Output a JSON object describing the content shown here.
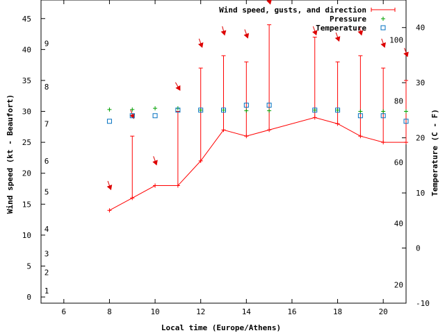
{
  "chart_data": {
    "type": "line",
    "xlabel": "Local time (Europe/Athens)",
    "ylabel_left": "Wind speed (kt - Beaufort)",
    "ylabel_right": "Temperature (C - F)",
    "xlim": [
      5,
      21
    ],
    "ylim_left": [
      -1,
      48
    ],
    "ylim_right": [
      -10,
      45
    ],
    "x_ticks": [
      6,
      8,
      10,
      12,
      14,
      16,
      18,
      20
    ],
    "y_left_ticks": [
      0,
      5,
      10,
      15,
      20,
      25,
      30,
      35,
      40,
      45
    ],
    "beaufort_labels": [
      {
        "label": "1",
        "kt": 1
      },
      {
        "label": "2",
        "kt": 4
      },
      {
        "label": "3",
        "kt": 7
      },
      {
        "label": "4",
        "kt": 11
      },
      {
        "label": "5",
        "kt": 17
      },
      {
        "label": "6",
        "kt": 22
      },
      {
        "label": "7",
        "kt": 28
      },
      {
        "label": "8",
        "kt": 34
      },
      {
        "label": "9",
        "kt": 41
      }
    ],
    "y_right_ticks": [
      -10,
      0,
      10,
      20,
      30,
      40
    ],
    "fahrenheit_labels": [
      {
        "label": "20",
        "f": 20
      },
      {
        "label": "40",
        "f": 40
      },
      {
        "label": "60",
        "f": 60
      },
      {
        "label": "80",
        "f": 80
      },
      {
        "label": "100",
        "f": 100
      }
    ],
    "legend_position": "top-right",
    "legend": [
      {
        "label": "Wind speed, gusts, and direction",
        "color": "#ff0000"
      },
      {
        "label": "Pressure",
        "color": "#00a000"
      },
      {
        "label": "Temperature",
        "color": "#0070c0"
      }
    ],
    "wind_speed": {
      "x": [
        8,
        9,
        10,
        11,
        12,
        13,
        14,
        15,
        17,
        18,
        19,
        20,
        21
      ],
      "values": [
        14,
        16,
        18,
        18,
        22,
        27,
        26,
        27,
        29,
        28,
        26,
        25,
        25
      ]
    },
    "wind_gust": {
      "x": [
        9,
        11,
        12,
        13,
        14,
        15,
        17,
        18,
        19,
        20,
        21
      ],
      "values": [
        26,
        30,
        37,
        39,
        38,
        44,
        42,
        38,
        39,
        37,
        35
      ]
    },
    "wind_direction_arrows": {
      "x": [
        8,
        9,
        10,
        11,
        12,
        13,
        14,
        15,
        17,
        18,
        19,
        20,
        21
      ],
      "kt": [
        18,
        29.5,
        22,
        34,
        41,
        43,
        42.5,
        48,
        43,
        42,
        43,
        41,
        39.5
      ],
      "direction_deg": [
        340,
        340,
        340,
        330,
        340,
        345,
        340,
        345,
        340,
        340,
        345,
        340,
        340
      ]
    },
    "pressure": {
      "x": [
        8,
        9,
        10,
        11,
        12,
        13,
        14,
        15,
        17,
        18,
        19,
        20,
        21
      ],
      "kt": [
        30.3,
        30.3,
        30.5,
        30.5,
        30.2,
        30.2,
        30.1,
        30.1,
        30.2,
        30.2,
        30,
        30,
        30
      ]
    },
    "temperature": {
      "x": [
        8,
        9,
        10,
        11,
        12,
        13,
        14,
        15,
        17,
        18,
        19,
        20,
        21
      ],
      "kt": [
        28.4,
        29.3,
        29.3,
        30.2,
        30.2,
        30.2,
        31,
        31,
        30.2,
        30.2,
        29.3,
        29.3,
        28.4
      ]
    },
    "colors": {
      "wind": "#ff0000",
      "pressure": "#00a000",
      "temperature": "#0070c0",
      "arrow": "#dd0000",
      "axis": "#000000"
    }
  }
}
